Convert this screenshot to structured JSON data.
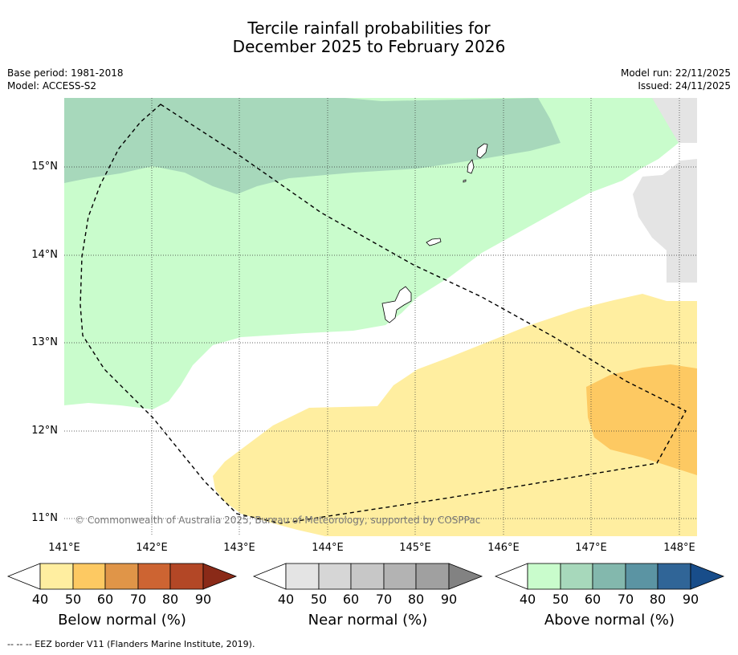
{
  "title": {
    "line1": "Tercile rainfall probabilities for",
    "line2": "December 2025 to February 2026"
  },
  "meta": {
    "base_period": "Base period: 1981-2018",
    "model": "Model: ACCESS-S2",
    "model_run": "Model run: 22/11/2025",
    "issued": "Issued: 24/11/2025"
  },
  "map": {
    "copyright": "© Commonwealth of Australia 2025, Bureau of Meteorology, supported by COSPPac",
    "x_ticks": [
      "141°E",
      "142°E",
      "143°E",
      "144°E",
      "145°E",
      "146°E",
      "147°E",
      "148°E"
    ],
    "y_ticks": [
      "15°N",
      "14°N",
      "13°N",
      "12°N",
      "11°N"
    ],
    "lon_range": [
      141.0,
      148.2
    ],
    "lat_range": [
      10.8,
      15.8
    ]
  },
  "legends": [
    {
      "label": "Below normal (%)",
      "ticks": [
        "40",
        "50",
        "60",
        "70",
        "80",
        "90"
      ],
      "colors": [
        "#ffeea0",
        "#fdc962",
        "#e09548",
        "#cd6432",
        "#b34726",
        "#8a2a18"
      ]
    },
    {
      "label": "Near normal (%)",
      "ticks": [
        "40",
        "50",
        "60",
        "70",
        "80",
        "90"
      ],
      "colors": [
        "#e4e4e4",
        "#d6d6d6",
        "#c7c7c7",
        "#b3b3b3",
        "#a0a0a0",
        "#828282"
      ]
    },
    {
      "label": "Above normal (%)",
      "ticks": [
        "40",
        "50",
        "60",
        "70",
        "80",
        "90"
      ],
      "colors": [
        "#c9fccc",
        "#a7d8bb",
        "#83b8ad",
        "#5b94a3",
        "#306597",
        "#184d8a"
      ]
    }
  ],
  "footer": "--  --  -- EEZ border V11 (Flanders Marine Institute, 2019)."
}
